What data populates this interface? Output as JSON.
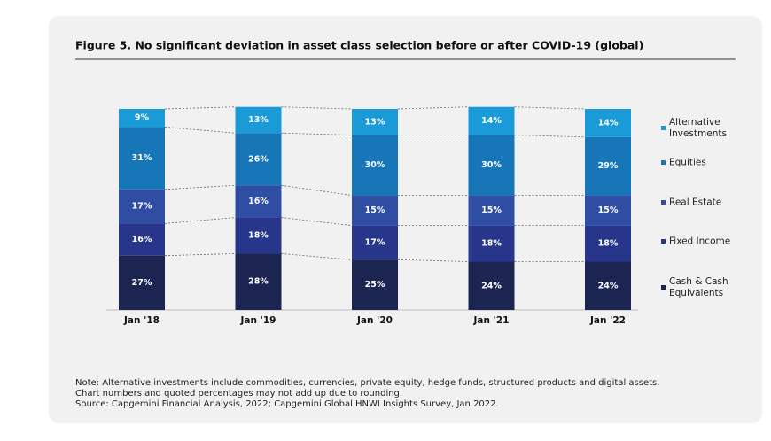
{
  "chart_data": {
    "type": "stacked-bar",
    "title": "Figure 5. No significant deviation in asset class selection before or after COVID-19 (global)",
    "categories": [
      "Jan '18",
      "Jan '19",
      "Jan '20",
      "Jan '21",
      "Jan '22"
    ],
    "series": [
      {
        "name": "Cash & Cash Equivalents",
        "color": "#1c2452",
        "values": [
          27,
          28,
          25,
          24,
          24
        ],
        "value_labels": [
          "27%",
          "28%",
          "25%",
          "24%",
          "24%"
        ]
      },
      {
        "name": "Fixed Income",
        "color": "#27368a",
        "values": [
          16,
          18,
          17,
          18,
          18
        ],
        "value_labels": [
          "16%",
          "18%",
          "17%",
          "18%",
          "18%"
        ]
      },
      {
        "name": "Real Estate",
        "color": "#2f4ea3",
        "values": [
          17,
          16,
          15,
          15,
          15
        ],
        "value_labels": [
          "17%",
          "16%",
          "15%",
          "15%",
          "15%"
        ]
      },
      {
        "name": "Equities",
        "color": "#1676b8",
        "values": [
          31,
          26,
          30,
          30,
          29
        ],
        "value_labels": [
          "31%",
          "26%",
          "30%",
          "30%",
          "29%"
        ]
      },
      {
        "name": "Alternative Investments",
        "color": "#1a9ad6",
        "values": [
          9,
          13,
          13,
          14,
          14
        ],
        "value_labels": [
          "9%",
          "13%",
          "13%",
          "14%",
          "14%"
        ]
      }
    ],
    "legend": "right",
    "notes": [
      "Note: Alternative investments include commodities, currencies, private equity, hedge funds, structured products and digital assets.",
      "Chart numbers and quoted percentages may not add up due to rounding.",
      "Source: Capgemini Financial Analysis, 2022; Capgemini Global HNWI Insights Survey, Jan 2022."
    ]
  }
}
